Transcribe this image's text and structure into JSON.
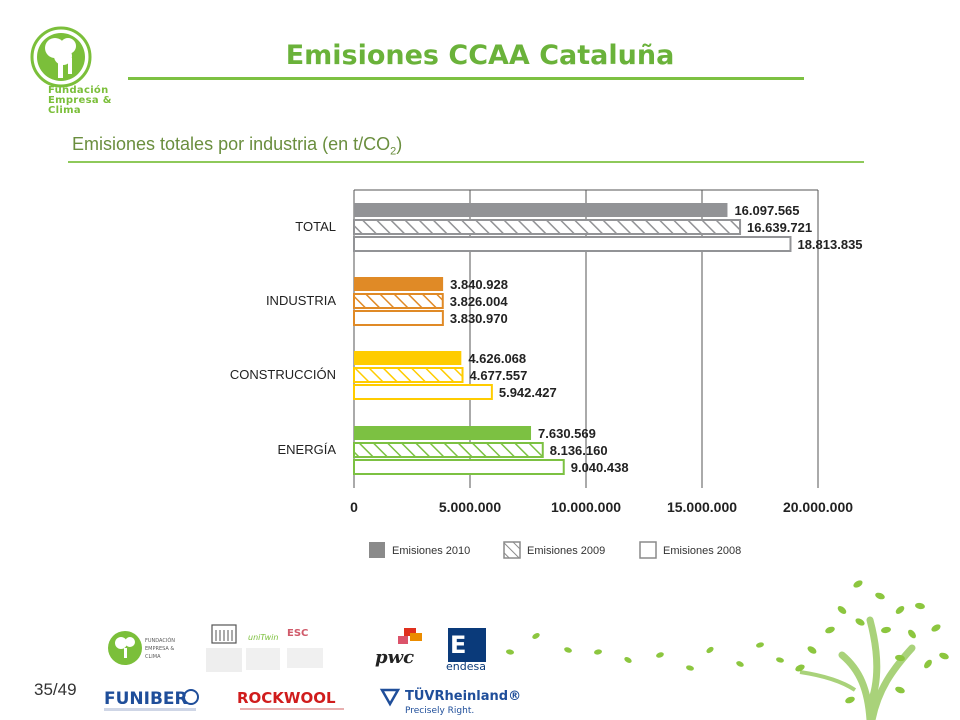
{
  "header": {
    "title": "Emisiones CCAA Cataluña",
    "logo_text": [
      "Fundación",
      "Empresa &",
      "Clima"
    ]
  },
  "subtitle": {
    "text": "Emisiones totales por industria (en t/CO",
    "sub": "2",
    "close": ")"
  },
  "page": {
    "number": "35/49"
  },
  "colors": {
    "gray": "#929396",
    "orange": "#e08a26",
    "yellow": "#ffcc00",
    "green": "#7cc142",
    "accent": "#6ab23a"
  },
  "chart_data": {
    "type": "bar",
    "orientation": "horizontal",
    "categories": [
      "TOTAL",
      "INDUSTRIA",
      "CONSTRUCCIÓN",
      "ENERGÍA"
    ],
    "category_colors": [
      "#929396",
      "#e08a26",
      "#ffcc00",
      "#7cc142"
    ],
    "series": [
      {
        "name": "Emisiones 2010",
        "style": "solid",
        "values": [
          16097565,
          3840928,
          4626068,
          7630569
        ],
        "labels": [
          "16.097.565",
          "3.840.928",
          "4.626.068",
          "7.630.569"
        ]
      },
      {
        "name": "Emisiones 2009",
        "style": "hatched",
        "values": [
          16639721,
          3826004,
          4677557,
          8136160
        ],
        "labels": [
          "16.639.721",
          "3.826.004",
          "4.677.557",
          "8.136.160"
        ]
      },
      {
        "name": "Emisiones 2008",
        "style": "outline",
        "values": [
          18813835,
          3830970,
          5942427,
          9040438
        ],
        "labels": [
          "18.813.835",
          "3.830.970",
          "5.942.427",
          "9.040.438"
        ]
      }
    ],
    "xlim": [
      0,
      20000000
    ],
    "ticks": [
      0,
      5000000,
      10000000,
      15000000,
      20000000
    ],
    "tick_labels": [
      "0",
      "5.000.000",
      "10.000.000",
      "15.000.000",
      "20.000.000"
    ],
    "grid": true,
    "legend_position": "bottom"
  },
  "sponsors": [
    "FUNIBER",
    "ROCKWOOL",
    "TÜVRheinland®",
    "Precisely Right.",
    "pwc",
    "endesa",
    "uniTwin"
  ]
}
